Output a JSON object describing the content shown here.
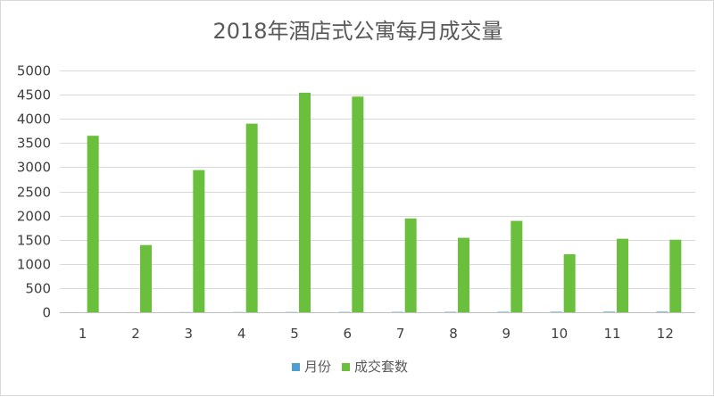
{
  "chart_data": {
    "type": "bar",
    "title": "2018年酒店式公寓每月成交量",
    "categories": [
      "1",
      "2",
      "3",
      "4",
      "5",
      "6",
      "7",
      "8",
      "9",
      "10",
      "11",
      "12"
    ],
    "series": [
      {
        "name": "月份",
        "color": "#4e9ed2",
        "values": [
          1,
          2,
          3,
          4,
          5,
          6,
          7,
          8,
          9,
          10,
          11,
          12
        ]
      },
      {
        "name": "成交套数",
        "color": "#6abf3c",
        "values": [
          3650,
          1390,
          2940,
          3900,
          4540,
          4460,
          1940,
          1540,
          1890,
          1200,
          1520,
          1500
        ]
      }
    ],
    "ylim": [
      0,
      5000
    ],
    "yticks": [
      "0",
      "500",
      "1000",
      "1500",
      "2000",
      "2500",
      "3000",
      "3500",
      "4000",
      "4500",
      "5000"
    ],
    "grid": true,
    "legend_position": "bottom"
  }
}
